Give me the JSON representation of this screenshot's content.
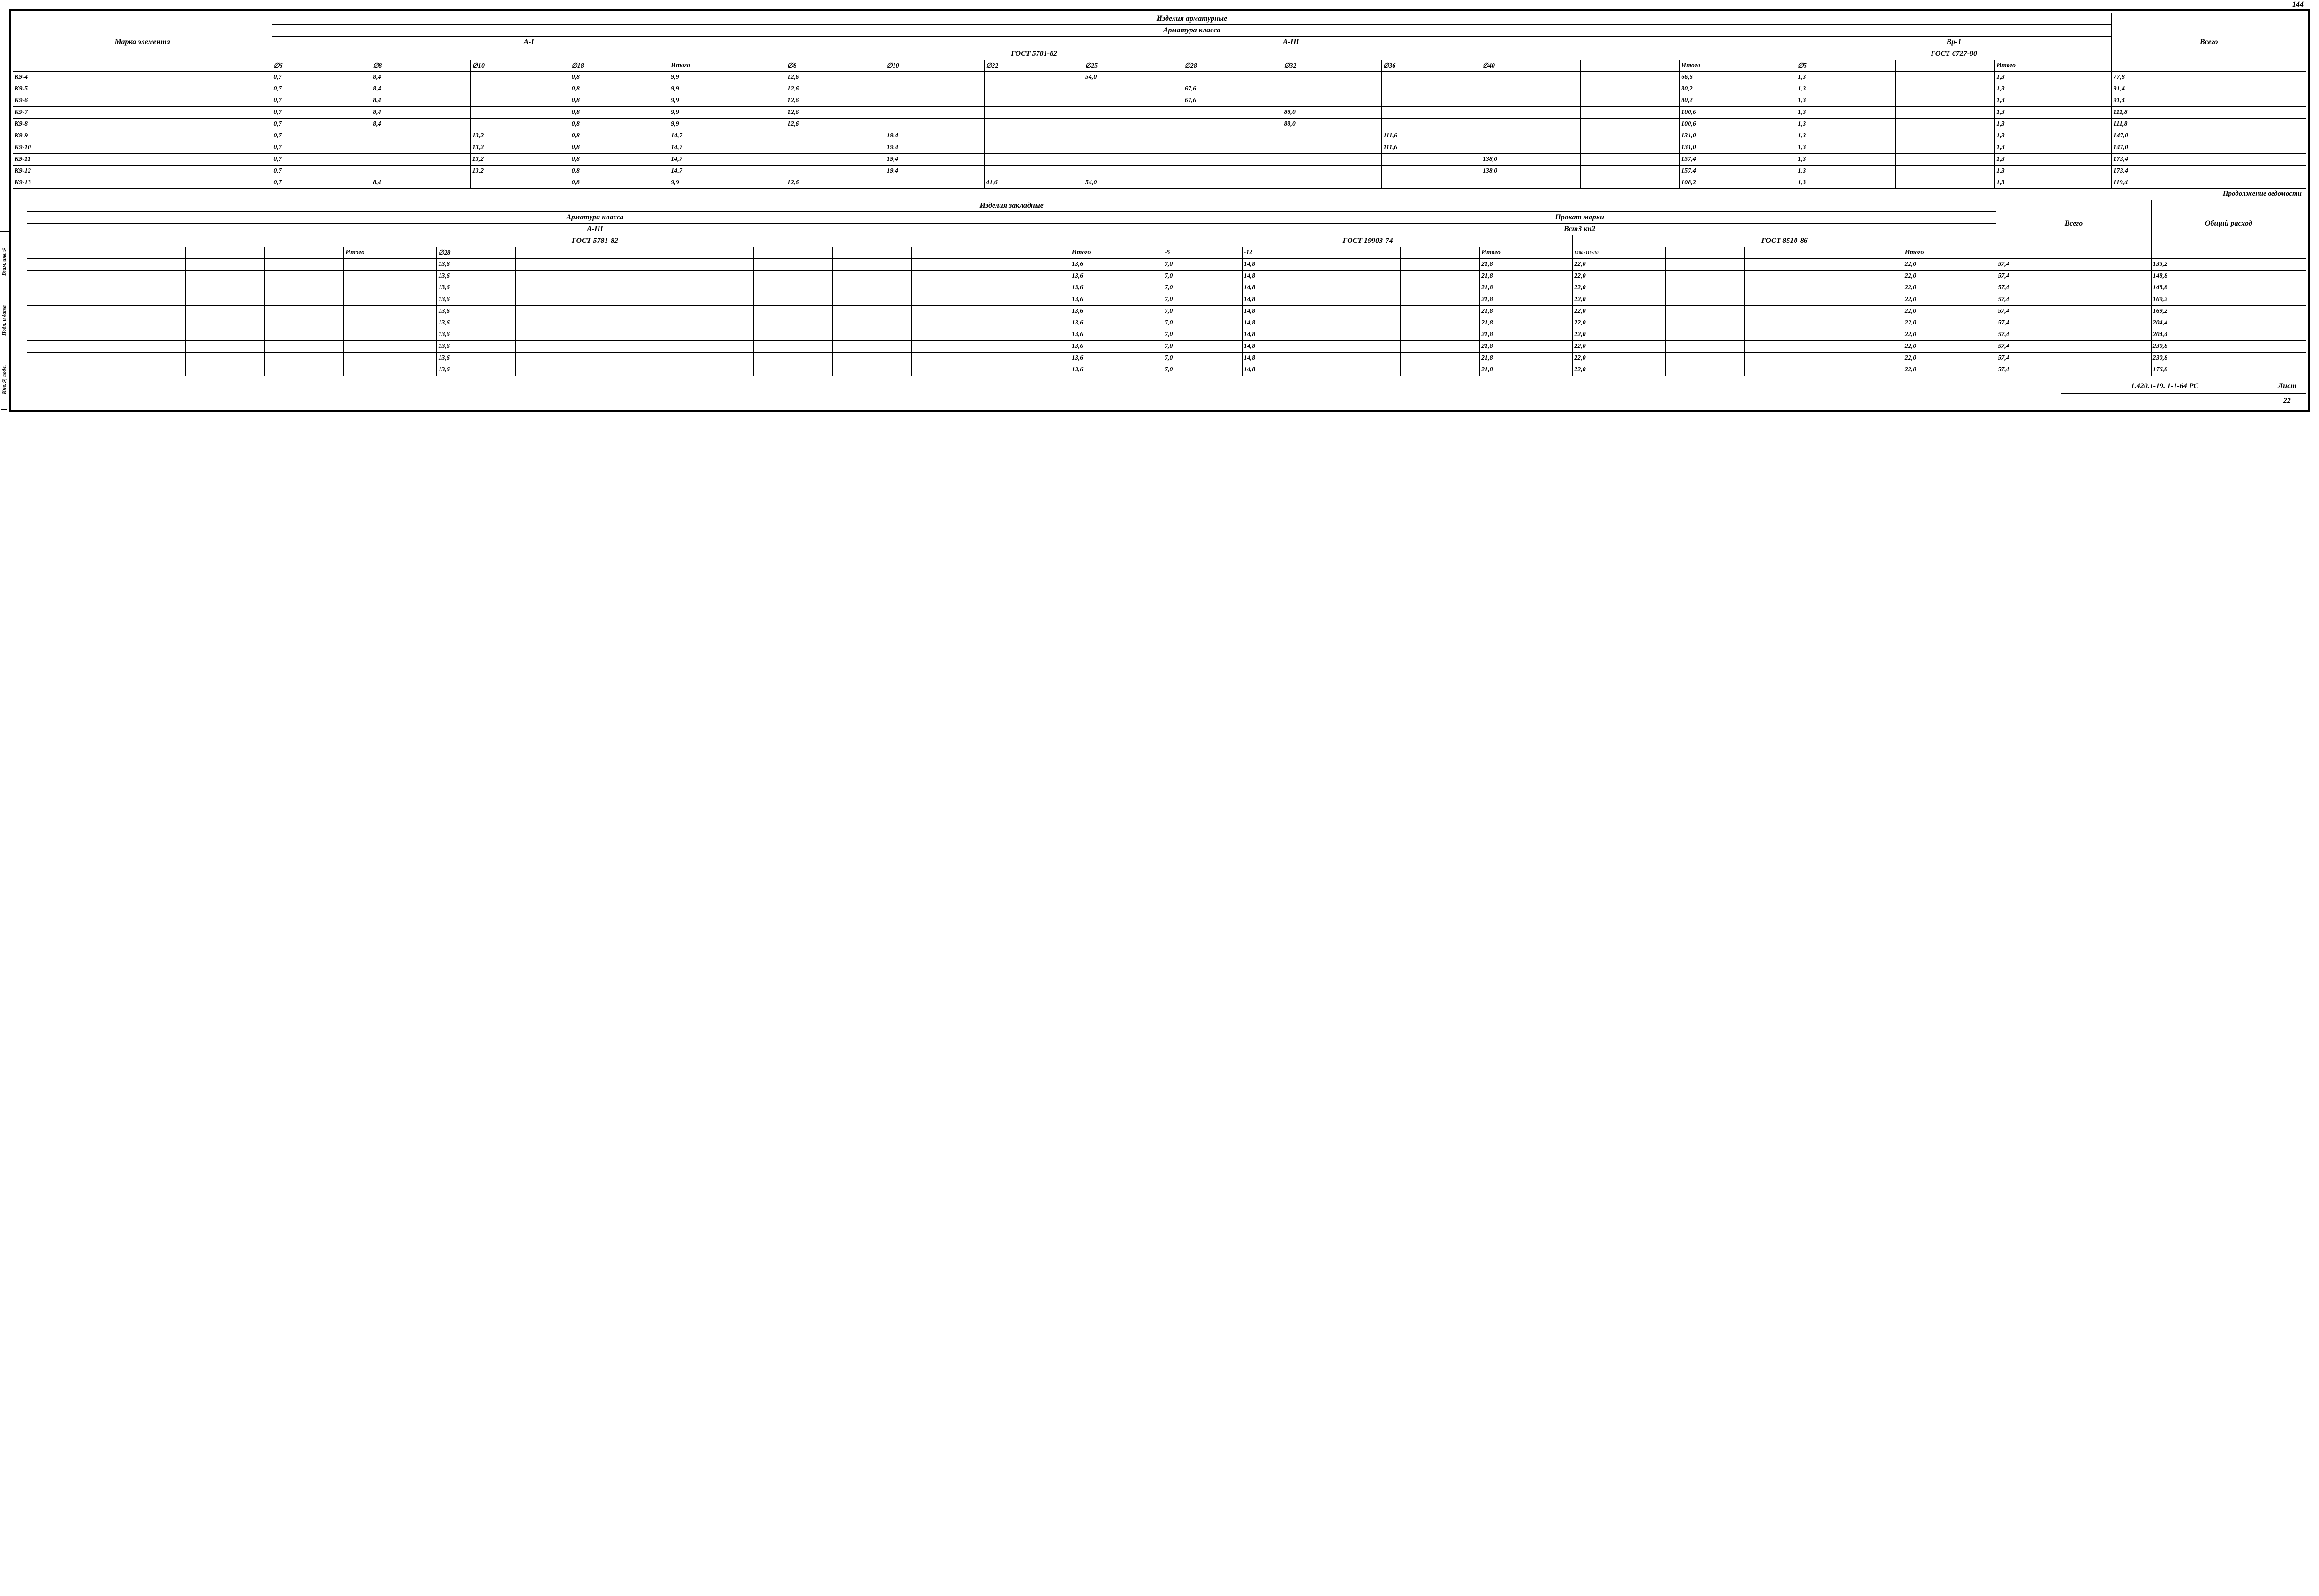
{
  "page_number_top": "144",
  "colors": {
    "line": "#000000",
    "bg": "#ffffff"
  },
  "typography": {
    "family": "cursive-italic",
    "cell_fontsize_pt": 14,
    "header_fontsize_pt": 16
  },
  "table1": {
    "super_title": "Изделия арматурные",
    "sub_title": "Арматура класса",
    "row_label": "Марка элемента",
    "groups": {
      "g1": {
        "title": "А-I",
        "gost": "ГОСТ 5781-82",
        "cols": [
          "∅6",
          "∅8",
          "∅10",
          "∅18",
          "Итого"
        ]
      },
      "g2": {
        "title": "А-III",
        "gost": "ГОСТ 5781-82",
        "cols": [
          "∅8",
          "∅10",
          "∅22",
          "∅25",
          "∅28",
          "∅32",
          "∅36",
          "∅40",
          "",
          "Итого"
        ]
      },
      "g3": {
        "title": "Вр-1",
        "gost": "ГОСТ 6727-80",
        "cols": [
          "∅5",
          "",
          "Итого"
        ]
      },
      "total": "Всего"
    },
    "rows": [
      {
        "m": "К9-4",
        "a": [
          "0,7",
          "8,4",
          "",
          "0,8",
          "9,9"
        ],
        "b": [
          "12,6",
          "",
          "",
          "54,0",
          "",
          "",
          "",
          "",
          "",
          "66,6"
        ],
        "c": [
          "1,3",
          "",
          "1,3"
        ],
        "t": "77,8"
      },
      {
        "m": "К9-5",
        "a": [
          "0,7",
          "8,4",
          "",
          "0,8",
          "9,9"
        ],
        "b": [
          "12,6",
          "",
          "",
          "",
          "67,6",
          "",
          "",
          "",
          "",
          "80,2"
        ],
        "c": [
          "1,3",
          "",
          "1,3"
        ],
        "t": "91,4"
      },
      {
        "m": "К9-6",
        "a": [
          "0,7",
          "8,4",
          "",
          "0,8",
          "9,9"
        ],
        "b": [
          "12,6",
          "",
          "",
          "",
          "67,6",
          "",
          "",
          "",
          "",
          "80,2"
        ],
        "c": [
          "1,3",
          "",
          "1,3"
        ],
        "t": "91,4"
      },
      {
        "m": "К9-7",
        "a": [
          "0,7",
          "8,4",
          "",
          "0,8",
          "9,9"
        ],
        "b": [
          "12,6",
          "",
          "",
          "",
          "",
          "88,0",
          "",
          "",
          "",
          "100,6"
        ],
        "c": [
          "1,3",
          "",
          "1,3"
        ],
        "t": "111,8"
      },
      {
        "m": "К9-8",
        "a": [
          "0,7",
          "8,4",
          "",
          "0,8",
          "9,9"
        ],
        "b": [
          "12,6",
          "",
          "",
          "",
          "",
          "88,0",
          "",
          "",
          "",
          "100,6"
        ],
        "c": [
          "1,3",
          "",
          "1,3"
        ],
        "t": "111,8"
      },
      {
        "m": "К9-9",
        "a": [
          "0,7",
          "",
          "13,2",
          "0,8",
          "14,7"
        ],
        "b": [
          "",
          "19,4",
          "",
          "",
          "",
          "",
          "111,6",
          "",
          "",
          "131,0"
        ],
        "c": [
          "1,3",
          "",
          "1,3"
        ],
        "t": "147,0"
      },
      {
        "m": "К9-10",
        "a": [
          "0,7",
          "",
          "13,2",
          "0,8",
          "14,7"
        ],
        "b": [
          "",
          "19,4",
          "",
          "",
          "",
          "",
          "111,6",
          "",
          "",
          "131,0"
        ],
        "c": [
          "1,3",
          "",
          "1,3"
        ],
        "t": "147,0"
      },
      {
        "m": "К9-11",
        "a": [
          "0,7",
          "",
          "13,2",
          "0,8",
          "14,7"
        ],
        "b": [
          "",
          "19,4",
          "",
          "",
          "",
          "",
          "",
          "138,0",
          "",
          "157,4"
        ],
        "c": [
          "1,3",
          "",
          "1,3"
        ],
        "t": "173,4"
      },
      {
        "m": "К9-12",
        "a": [
          "0,7",
          "",
          "13,2",
          "0,8",
          "14,7"
        ],
        "b": [
          "",
          "19,4",
          "",
          "",
          "",
          "",
          "",
          "138,0",
          "",
          "157,4"
        ],
        "c": [
          "1,3",
          "",
          "1,3"
        ],
        "t": "173,4"
      },
      {
        "m": "К9-13",
        "a": [
          "0,7",
          "8,4",
          "",
          "0,8",
          "9,9"
        ],
        "b": [
          "12,6",
          "",
          "41,6",
          "54,0",
          "",
          "",
          "",
          "",
          "",
          "108,2"
        ],
        "c": [
          "1,3",
          "",
          "1,3"
        ],
        "t": "119,4"
      }
    ]
  },
  "continuation_note": "Продолжение ведомости",
  "table2": {
    "super_title": "Изделия закладные",
    "left_group_title": "Арматура класса",
    "left_sub": "А-III",
    "left_gost": "ГОСТ 5781-82",
    "right_group_title": "Прокат марки",
    "right_sub": "Вст3 кп2",
    "right_gost1": "ГОСТ 19903-74",
    "right_gost2": "ГОСТ 8510-86",
    "total": "Всего",
    "grand": "Общий расход",
    "left_cols": [
      "",
      "",
      "",
      "",
      "Итого",
      "∅28",
      "",
      "",
      "",
      "",
      "",
      "",
      "",
      "Итого"
    ],
    "right_cols": [
      "-5",
      "-12",
      "",
      "",
      "Итого",
      "L180×110×10",
      "",
      "",
      "",
      "Итого"
    ],
    "rows": [
      {
        "l": [
          "",
          "",
          "",
          "",
          "",
          "13,6",
          "",
          "",
          "",
          "",
          "",
          "",
          "",
          "13,6"
        ],
        "r": [
          "7,0",
          "14,8",
          "",
          "",
          "21,8",
          "22,0",
          "",
          "",
          "",
          "22,0"
        ],
        "t": "57,4",
        "g": "135,2"
      },
      {
        "l": [
          "",
          "",
          "",
          "",
          "",
          "13,6",
          "",
          "",
          "",
          "",
          "",
          "",
          "",
          "13,6"
        ],
        "r": [
          "7,0",
          "14,8",
          "",
          "",
          "21,8",
          "22,0",
          "",
          "",
          "",
          "22,0"
        ],
        "t": "57,4",
        "g": "148,8"
      },
      {
        "l": [
          "",
          "",
          "",
          "",
          "",
          "13,6",
          "",
          "",
          "",
          "",
          "",
          "",
          "",
          "13,6"
        ],
        "r": [
          "7,0",
          "14,8",
          "",
          "",
          "21,8",
          "22,0",
          "",
          "",
          "",
          "22,0"
        ],
        "t": "57,4",
        "g": "148,8"
      },
      {
        "l": [
          "",
          "",
          "",
          "",
          "",
          "13,6",
          "",
          "",
          "",
          "",
          "",
          "",
          "",
          "13,6"
        ],
        "r": [
          "7,0",
          "14,8",
          "",
          "",
          "21,8",
          "22,0",
          "",
          "",
          "",
          "22,0"
        ],
        "t": "57,4",
        "g": "169,2"
      },
      {
        "l": [
          "",
          "",
          "",
          "",
          "",
          "13,6",
          "",
          "",
          "",
          "",
          "",
          "",
          "",
          "13,6"
        ],
        "r": [
          "7,0",
          "14,8",
          "",
          "",
          "21,8",
          "22,0",
          "",
          "",
          "",
          "22,0"
        ],
        "t": "57,4",
        "g": "169,2"
      },
      {
        "l": [
          "",
          "",
          "",
          "",
          "",
          "13,6",
          "",
          "",
          "",
          "",
          "",
          "",
          "",
          "13,6"
        ],
        "r": [
          "7,0",
          "14,8",
          "",
          "",
          "21,8",
          "22,0",
          "",
          "",
          "",
          "22,0"
        ],
        "t": "57,4",
        "g": "204,4"
      },
      {
        "l": [
          "",
          "",
          "",
          "",
          "",
          "13,6",
          "",
          "",
          "",
          "",
          "",
          "",
          "",
          "13,6"
        ],
        "r": [
          "7,0",
          "14,8",
          "",
          "",
          "21,8",
          "22,0",
          "",
          "",
          "",
          "22,0"
        ],
        "t": "57,4",
        "g": "204,4"
      },
      {
        "l": [
          "",
          "",
          "",
          "",
          "",
          "13,6",
          "",
          "",
          "",
          "",
          "",
          "",
          "",
          "13,6"
        ],
        "r": [
          "7,0",
          "14,8",
          "",
          "",
          "21,8",
          "22,0",
          "",
          "",
          "",
          "22,0"
        ],
        "t": "57,4",
        "g": "230,8"
      },
      {
        "l": [
          "",
          "",
          "",
          "",
          "",
          "13,6",
          "",
          "",
          "",
          "",
          "",
          "",
          "",
          "13,6"
        ],
        "r": [
          "7,0",
          "14,8",
          "",
          "",
          "21,8",
          "22,0",
          "",
          "",
          "",
          "22,0"
        ],
        "t": "57,4",
        "g": "230,8"
      },
      {
        "l": [
          "",
          "",
          "",
          "",
          "",
          "13,6",
          "",
          "",
          "",
          "",
          "",
          "",
          "",
          "13,6"
        ],
        "r": [
          "7,0",
          "14,8",
          "",
          "",
          "21,8",
          "22,0",
          "",
          "",
          "",
          "22,0"
        ],
        "t": "57,4",
        "g": "176,8"
      }
    ]
  },
  "stamp": {
    "code": "1.420.1-19. 1-1-64  РС",
    "sheet_label": "Лист",
    "sheet_no": "22"
  },
  "side_labels": [
    "Инв.№ подл.",
    "Подп. и дата",
    "Взам. инв.№"
  ]
}
